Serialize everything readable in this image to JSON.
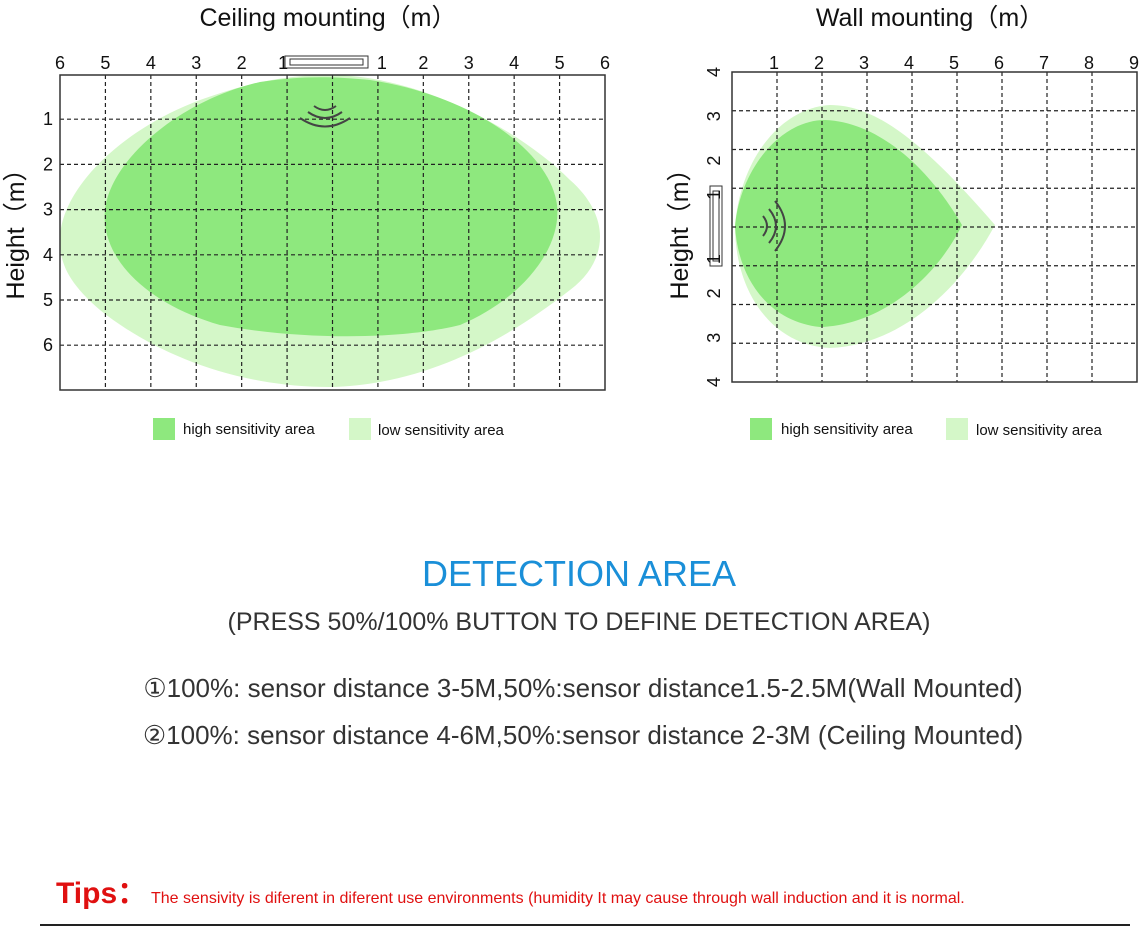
{
  "ceiling": {
    "title": "Ceiling mounting（m）",
    "y_label": "Height（m）",
    "x_labels": [
      "6",
      "5",
      "4",
      "3",
      "2",
      "1",
      "1",
      "2",
      "3",
      "4",
      "5",
      "6"
    ],
    "y_labels": [
      "1",
      "2",
      "3",
      "4",
      "5",
      "6"
    ],
    "legend": [
      "high sensitivity area",
      "low sensitivity area"
    ]
  },
  "wall": {
    "title": "Wall mounting（m）",
    "y_label": "Height（m）",
    "x_labels": [
      "1",
      "2",
      "3",
      "4",
      "5",
      "6",
      "7",
      "8",
      "9"
    ],
    "y_labels": [
      "4",
      "3",
      "2",
      "1",
      "1",
      "2",
      "3",
      "4"
    ],
    "legend": [
      "high sensitivity area",
      "low sensitivity area"
    ]
  },
  "section": {
    "heading": "DETECTION AREA",
    "subheading": "(PRESS 50%/100% BUTTON TO DEFINE DETECTION AREA)",
    "notes": [
      "①100%: sensor distance 3-5M,50%:sensor distance1.5-2.5M(Wall Mounted)",
      "②100%: sensor distance 4-6M,50%:sensor distance 2-3M (Ceiling Mounted)"
    ]
  },
  "tips": {
    "label": "Tips：",
    "text": "The sensivity is diferent in diferent use environments (humidity It may cause through wall induction and it is normal."
  }
}
